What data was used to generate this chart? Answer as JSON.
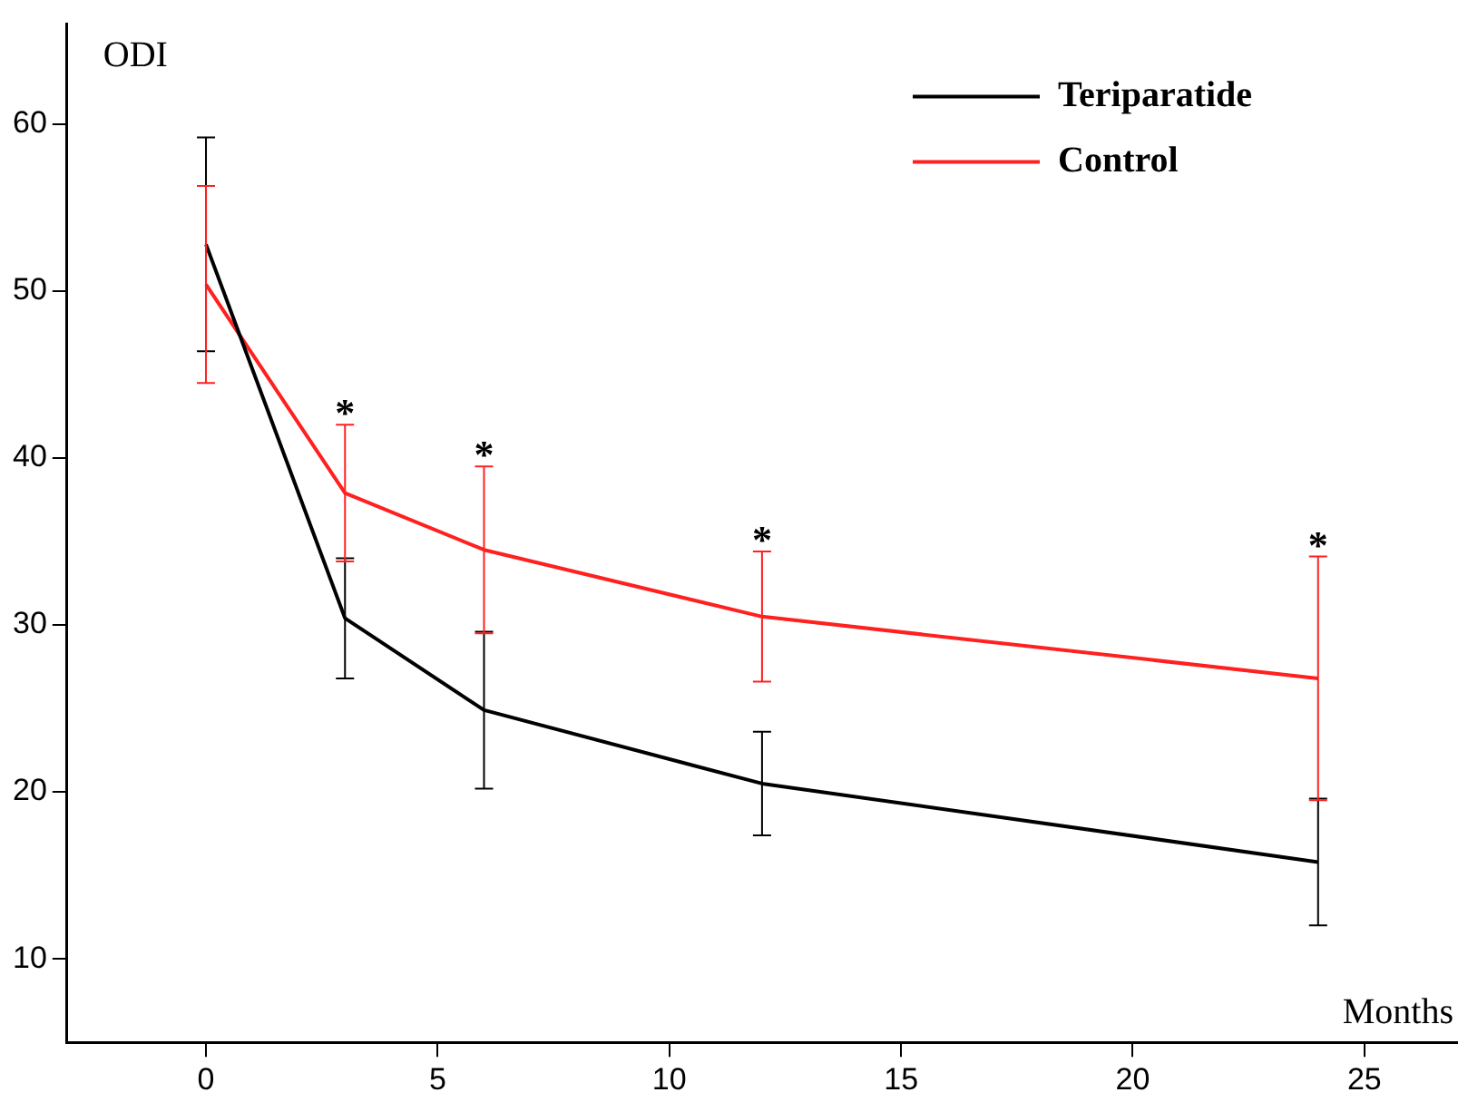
{
  "chart_data": {
    "type": "line",
    "ylabel": "ODI",
    "xlabel": "Months",
    "x": [
      0,
      3,
      6,
      12,
      24
    ],
    "series": [
      {
        "name": "Teriparatide",
        "color": "#000000",
        "values": [
          52.8,
          30.4,
          24.9,
          20.5,
          15.8
        ],
        "errors": [
          6.4,
          3.6,
          4.7,
          3.1,
          3.8
        ]
      },
      {
        "name": "Control",
        "color": "#ff2020",
        "values": [
          50.4,
          37.9,
          34.5,
          30.5,
          26.8
        ],
        "errors": [
          5.9,
          4.1,
          5.0,
          3.9,
          7.3
        ]
      }
    ],
    "xlim": [
      -3,
      27
    ],
    "xticks": [
      0,
      5,
      10,
      15,
      20,
      25
    ],
    "ylim": [
      5,
      66
    ],
    "yticks": [
      10,
      20,
      30,
      40,
      50,
      60
    ],
    "annotations": [
      {
        "text": "*",
        "x": 3,
        "y": 42.0
      },
      {
        "text": "*",
        "x": 6,
        "y": 39.5
      },
      {
        "text": "*",
        "x": 12,
        "y": 34.4
      },
      {
        "text": "*",
        "x": 24,
        "y": 34.1
      }
    ],
    "grid": false,
    "legend": "top right",
    "marker": "none",
    "line_style": "solid"
  }
}
